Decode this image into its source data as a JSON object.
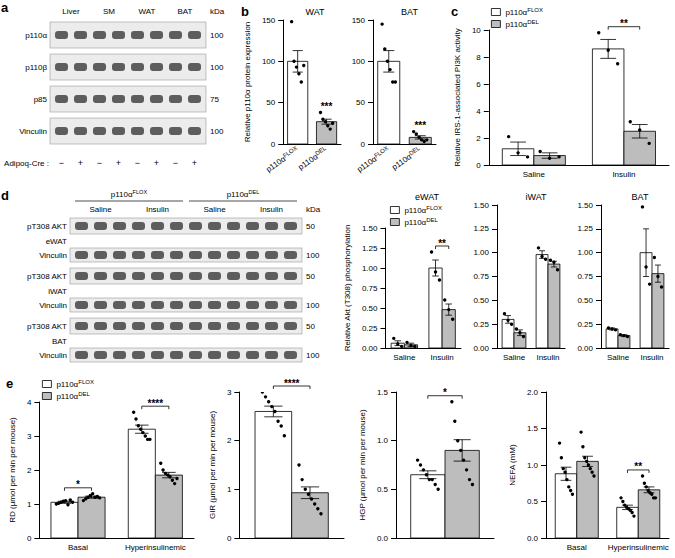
{
  "blot_a": {
    "panel_label": "a",
    "groups": [
      "Liver",
      "SM",
      "WAT",
      "BAT"
    ],
    "kda_header": "kDa",
    "rows": [
      {
        "label": "p110α",
        "kda": 100
      },
      {
        "label": "p110β",
        "kda": 100
      },
      {
        "label": "p85",
        "kda": 75
      },
      {
        "label": "Vinculin",
        "kda": 100
      }
    ],
    "genotype_label": "Adipoq-Cre :",
    "lanes": [
      "−",
      "+",
      "−",
      "+",
      "−",
      "+",
      "−",
      "+"
    ]
  },
  "blot_d": {
    "panel_label": "d",
    "kda_header": "kDa",
    "genotypes": [
      {
        "label": "p110αFLOX",
        "conditions": [
          "Saline",
          "Insulin"
        ]
      },
      {
        "label": "p110αDEL",
        "conditions": [
          "Saline",
          "Insulin"
        ]
      }
    ],
    "tissues": [
      {
        "label": "eWAT",
        "rows": [
          {
            "label": "pT308 AKT",
            "kda": 50
          },
          {
            "label": "Vinculin",
            "kda": 100
          }
        ]
      },
      {
        "label": "iWAT",
        "rows": [
          {
            "label": "pT308 AKT",
            "kda": 50
          },
          {
            "label": "Vinculin",
            "kda": 100
          }
        ]
      },
      {
        "label": "BAT",
        "rows": [
          {
            "label": "pT308 AKT",
            "kda": 50
          },
          {
            "label": "Vinculin",
            "kda": 100
          }
        ]
      }
    ]
  },
  "chart_data": [
    {
      "type": "bar",
      "panel_label": "b",
      "title": "WAT",
      "ylabel": "Relative p110α protein expression",
      "categories": [
        "p110αFLOX",
        "p110αDEL"
      ],
      "colors": [
        "#ffffff",
        "#bdbdbd"
      ],
      "values": [
        100,
        27
      ],
      "errors": [
        13,
        3
      ],
      "points": [
        [
          148,
          100,
          93,
          85,
          75,
          95
        ],
        [
          38,
          30,
          27,
          22,
          18,
          25
        ]
      ],
      "ylim": [
        0,
        150
      ],
      "yticks": [
        0,
        50,
        100,
        150
      ],
      "annotations": [
        {
          "text": "***",
          "category": "p110αDEL",
          "bracket": false
        }
      ]
    },
    {
      "type": "bar",
      "title": "BAT",
      "categories": [
        "p110αFLOX",
        "p110αDEL"
      ],
      "colors": [
        "#ffffff",
        "#bdbdbd"
      ],
      "values": [
        100,
        8
      ],
      "errors": [
        13,
        2
      ],
      "points": [
        [
          145,
          115,
          100,
          90,
          75,
          75
        ],
        [
          15,
          12,
          8,
          5,
          3,
          5
        ]
      ],
      "ylim": [
        0,
        150
      ],
      "yticks": [
        0,
        50,
        100,
        150
      ],
      "annotations": [
        {
          "text": "***",
          "category": "p110αDEL",
          "bracket": false
        }
      ]
    },
    {
      "type": "bar",
      "panel_label": "c",
      "ylabel": "Relative IRS-1-associated PI3K activity",
      "categories": [
        "Saline",
        "Insulin"
      ],
      "series": [
        {
          "name": "p110αFLOX",
          "color": "#ffffff",
          "values": [
            1.2,
            8.6
          ],
          "errors": [
            0.5,
            0.7
          ],
          "points": [
            [
              2.1,
              0.9,
              0.6
            ],
            [
              9.8,
              8.5,
              7.5
            ]
          ]
        },
        {
          "name": "p110αDEL",
          "color": "#bdbdbd",
          "values": [
            0.7,
            2.5
          ],
          "errors": [
            0.2,
            0.5
          ],
          "points": [
            [
              1.0,
              0.5,
              0.6
            ],
            [
              3.2,
              2.6,
              1.6
            ]
          ]
        }
      ],
      "ylim": [
        0,
        10
      ],
      "yticks": [
        0,
        2,
        4,
        6,
        8,
        10
      ],
      "legend": "upper left",
      "annotations": [
        {
          "text": "**",
          "category": "Insulin",
          "bracket": true
        }
      ]
    },
    {
      "type": "bar",
      "title": "eWAT",
      "ylabel": "Relative Akt (T308) phosphorylation",
      "categories": [
        "Saline",
        "Insulin"
      ],
      "series": [
        {
          "name": "p110αFLOX",
          "color": "#ffffff",
          "values": [
            0.06,
            1.0
          ],
          "errors": [
            0.03,
            0.1
          ],
          "points": [
            [
              0.12,
              0.05,
              0.02
            ],
            [
              1.2,
              0.95,
              0.85
            ]
          ]
        },
        {
          "name": "p110αDEL",
          "color": "#bdbdbd",
          "values": [
            0.04,
            0.48
          ],
          "errors": [
            0.02,
            0.07
          ],
          "points": [
            [
              0.07,
              0.03,
              0.02
            ],
            [
              0.6,
              0.48,
              0.36
            ]
          ]
        }
      ],
      "ylim": [
        0,
        1.5
      ],
      "yticks": [
        {
          "value": 0,
          "label": "0.00"
        },
        {
          "value": 0.25,
          "label": "0.25"
        },
        {
          "value": 0.5,
          "label": "0.50"
        },
        {
          "value": 0.75,
          "label": "0.75"
        },
        {
          "value": 1,
          "label": "1.00"
        },
        {
          "value": 1.25,
          "label": "1.25"
        },
        {
          "value": 1.5,
          "label": "1.50"
        }
      ],
      "legend": "upper left",
      "annotations": [
        {
          "text": "**",
          "category": "Insulin",
          "bracket": true
        }
      ]
    },
    {
      "type": "bar",
      "title": "iWAT",
      "categories": [
        "Saline",
        "Insulin"
      ],
      "series": [
        {
          "color": "#ffffff",
          "values": [
            0.3,
            0.98
          ],
          "errors": [
            0.04,
            0.04
          ],
          "points": [
            [
              0.36,
              0.29,
              0.25
            ],
            [
              1.05,
              0.96,
              0.93
            ]
          ]
        },
        {
          "color": "#bdbdbd",
          "values": [
            0.16,
            0.88
          ],
          "errors": [
            0.03,
            0.03
          ],
          "points": [
            [
              0.2,
              0.16,
              0.12
            ],
            [
              0.92,
              0.9,
              0.82
            ]
          ]
        }
      ],
      "ylim": [
        0,
        1.5
      ],
      "yticks": [
        {
          "value": 0,
          "label": "0.00"
        },
        {
          "value": 0.25,
          "label": "0.25"
        },
        {
          "value": 0.5,
          "label": "0.50"
        },
        {
          "value": 0.75,
          "label": "0.75"
        },
        {
          "value": 1,
          "label": "1.00"
        },
        {
          "value": 1.25,
          "label": "1.25"
        },
        {
          "value": 1.5,
          "label": "1.50"
        }
      ]
    },
    {
      "type": "bar",
      "title": "BAT",
      "categories": [
        "Saline",
        "Insulin"
      ],
      "series": [
        {
          "color": "#ffffff",
          "values": [
            0.2,
            1.0
          ],
          "errors": [
            0.01,
            0.25
          ],
          "points": [
            [
              0.21,
              0.2,
              0.19
            ],
            [
              1.48,
              0.85,
              0.67
            ]
          ]
        },
        {
          "color": "#bdbdbd",
          "values": [
            0.13,
            0.78
          ],
          "errors": [
            0.01,
            0.09
          ],
          "points": [
            [
              0.14,
              0.13,
              0.12
            ],
            [
              0.95,
              0.75,
              0.64
            ]
          ]
        }
      ],
      "ylim": [
        0,
        1.5
      ],
      "yticks": [
        {
          "value": 0,
          "label": "0.00"
        },
        {
          "value": 0.25,
          "label": "0.25"
        },
        {
          "value": 0.5,
          "label": "0.50"
        },
        {
          "value": 0.75,
          "label": "0.75"
        },
        {
          "value": 1,
          "label": "1.00"
        },
        {
          "value": 1.25,
          "label": "1.25"
        },
        {
          "value": 1.5,
          "label": "1.50"
        }
      ]
    },
    {
      "type": "bar",
      "panel_label": "e",
      "ylabel": "RD (μmol per min per mouse)",
      "categories": [
        "Basal",
        "Hyperinsulinemic"
      ],
      "series": [
        {
          "name": "p110αFLOX",
          "color": "#ffffff",
          "values": [
            1.05,
            3.2
          ],
          "errors": [
            0.03,
            0.12
          ],
          "points": [
            [
              1.0,
              1.02,
              1.05,
              1.08,
              1.1,
              0.98,
              1.12,
              1.05
            ],
            [
              3.7,
              3.5,
              3.3,
              3.2,
              3.1,
              3.0,
              2.9,
              2.9
            ]
          ]
        },
        {
          "name": "p110αDEL",
          "color": "#bdbdbd",
          "values": [
            1.2,
            1.85
          ],
          "errors": [
            0.03,
            0.08
          ],
          "points": [
            [
              1.1,
              1.15,
              1.2,
              1.25,
              1.3,
              1.2,
              1.22,
              1.18
            ],
            [
              2.2,
              2.0,
              1.9,
              1.85,
              1.8,
              1.7,
              1.6,
              1.75
            ]
          ]
        }
      ],
      "ylim": [
        0,
        4
      ],
      "yticks": [
        0,
        1,
        2,
        3,
        4
      ],
      "legend": "upper left",
      "annotations": [
        {
          "text": "*",
          "category": "Basal",
          "bracket": true
        },
        {
          "text": "****",
          "category": "Hyperinsulinemic",
          "bracket": true
        }
      ]
    },
    {
      "type": "bar",
      "ylabel": "GIR (μmol per min per mouse)",
      "categories": [
        null
      ],
      "series": [
        {
          "color": "#ffffff",
          "values": [
            2.6
          ],
          "errors": [
            0.11
          ],
          "points": [
            [
              3.0,
              2.9,
              2.8,
              2.7,
              2.6,
              2.4,
              2.3,
              2.1
            ]
          ]
        },
        {
          "color": "#bdbdbd",
          "values": [
            0.93
          ],
          "errors": [
            0.12
          ],
          "points": [
            [
              1.5,
              1.2,
              1.0,
              0.9,
              0.8,
              0.7,
              0.6,
              0.5
            ]
          ]
        }
      ],
      "ylim": [
        0,
        3
      ],
      "yticks": [
        0,
        1,
        2,
        3
      ],
      "annotations": [
        {
          "text": "****",
          "category": null,
          "bracket": true
        }
      ]
    },
    {
      "type": "bar",
      "ylabel": "HGP (μmol per min per mouse)",
      "categories": [
        null
      ],
      "series": [
        {
          "color": "#ffffff",
          "values": [
            0.65
          ],
          "errors": [
            0.04
          ],
          "points": [
            [
              0.8,
              0.75,
              0.7,
              0.65,
              0.6,
              0.6,
              0.55,
              0.5
            ]
          ]
        },
        {
          "color": "#bdbdbd",
          "values": [
            0.9
          ],
          "errors": [
            0.11
          ],
          "points": [
            [
              1.4,
              1.2,
              1.0,
              0.9,
              0.8,
              0.7,
              0.6,
              0.55
            ]
          ]
        }
      ],
      "ylim": [
        0,
        1.5
      ],
      "yticks": [
        {
          "value": 0,
          "label": "0.0"
        },
        {
          "value": 0.5,
          "label": "0.5"
        },
        {
          "value": 1,
          "label": "1.0"
        },
        {
          "value": 1.5,
          "label": "1.5"
        }
      ],
      "annotations": [
        {
          "text": "*",
          "category": null,
          "bracket": true
        }
      ]
    },
    {
      "type": "bar",
      "ylabel": "NEFA (mM)",
      "categories": [
        "Basal",
        "Hyperinsulinemic"
      ],
      "series": [
        {
          "color": "#ffffff",
          "values": [
            0.88,
            0.42
          ],
          "errors": [
            0.09,
            0.03
          ],
          "points": [
            [
              1.3,
              1.1,
              0.95,
              0.9,
              0.8,
              0.7,
              0.65,
              0.6
            ],
            [
              0.55,
              0.5,
              0.45,
              0.42,
              0.4,
              0.38,
              0.35,
              0.3
            ]
          ]
        },
        {
          "color": "#bdbdbd",
          "values": [
            1.05,
            0.66
          ],
          "errors": [
            0.07,
            0.04
          ],
          "points": [
            [
              1.45,
              1.25,
              1.1,
              1.05,
              1.0,
              0.95,
              0.9,
              0.85
            ],
            [
              0.85,
              0.75,
              0.7,
              0.65,
              0.62,
              0.6,
              0.55,
              0.55
            ]
          ]
        }
      ],
      "ylim": [
        0,
        2
      ],
      "yticks": [
        {
          "value": 0,
          "label": "0.0"
        },
        {
          "value": 0.5,
          "label": "0.5"
        },
        {
          "value": 1,
          "label": "1.0"
        },
        {
          "value": 1.5,
          "label": "1.5"
        },
        {
          "value": 2,
          "label": "2.0"
        }
      ],
      "annotations": [
        {
          "text": "**",
          "category": "Hyperinsulinemic",
          "bracket": true
        }
      ]
    }
  ]
}
